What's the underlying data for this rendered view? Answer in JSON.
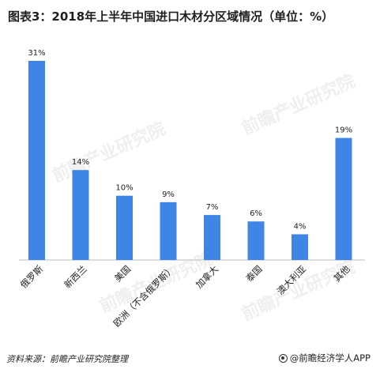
{
  "title": "图表3：2018年上半年中国进口木材分区域情况（单位：%）",
  "source": "资料来源：前瞻产业研究院整理",
  "brand": "@前瞻经济学人APP",
  "watermark": "前瞻产业研究院",
  "colors": {
    "bar": "#3F85E5",
    "text": "#222222",
    "axis": "#999999"
  },
  "chart_data": {
    "type": "bar",
    "title": "图表3：2018年上半年中国进口木材分区域情况（单位：%）",
    "categories": [
      "俄罗斯",
      "新西兰",
      "美国",
      "欧洲（不含俄罗斯）",
      "加拿大",
      "泰国",
      "澳大利亚",
      "其他"
    ],
    "values": [
      31,
      14,
      10,
      9,
      7,
      6,
      4,
      19
    ],
    "data_labels": [
      "31%",
      "14%",
      "10%",
      "9%",
      "7%",
      "6%",
      "4%",
      "19%"
    ],
    "unit": "%",
    "xlabel": "",
    "ylabel": "",
    "ylim": [
      0,
      31
    ],
    "grid": false,
    "legend": "none"
  }
}
